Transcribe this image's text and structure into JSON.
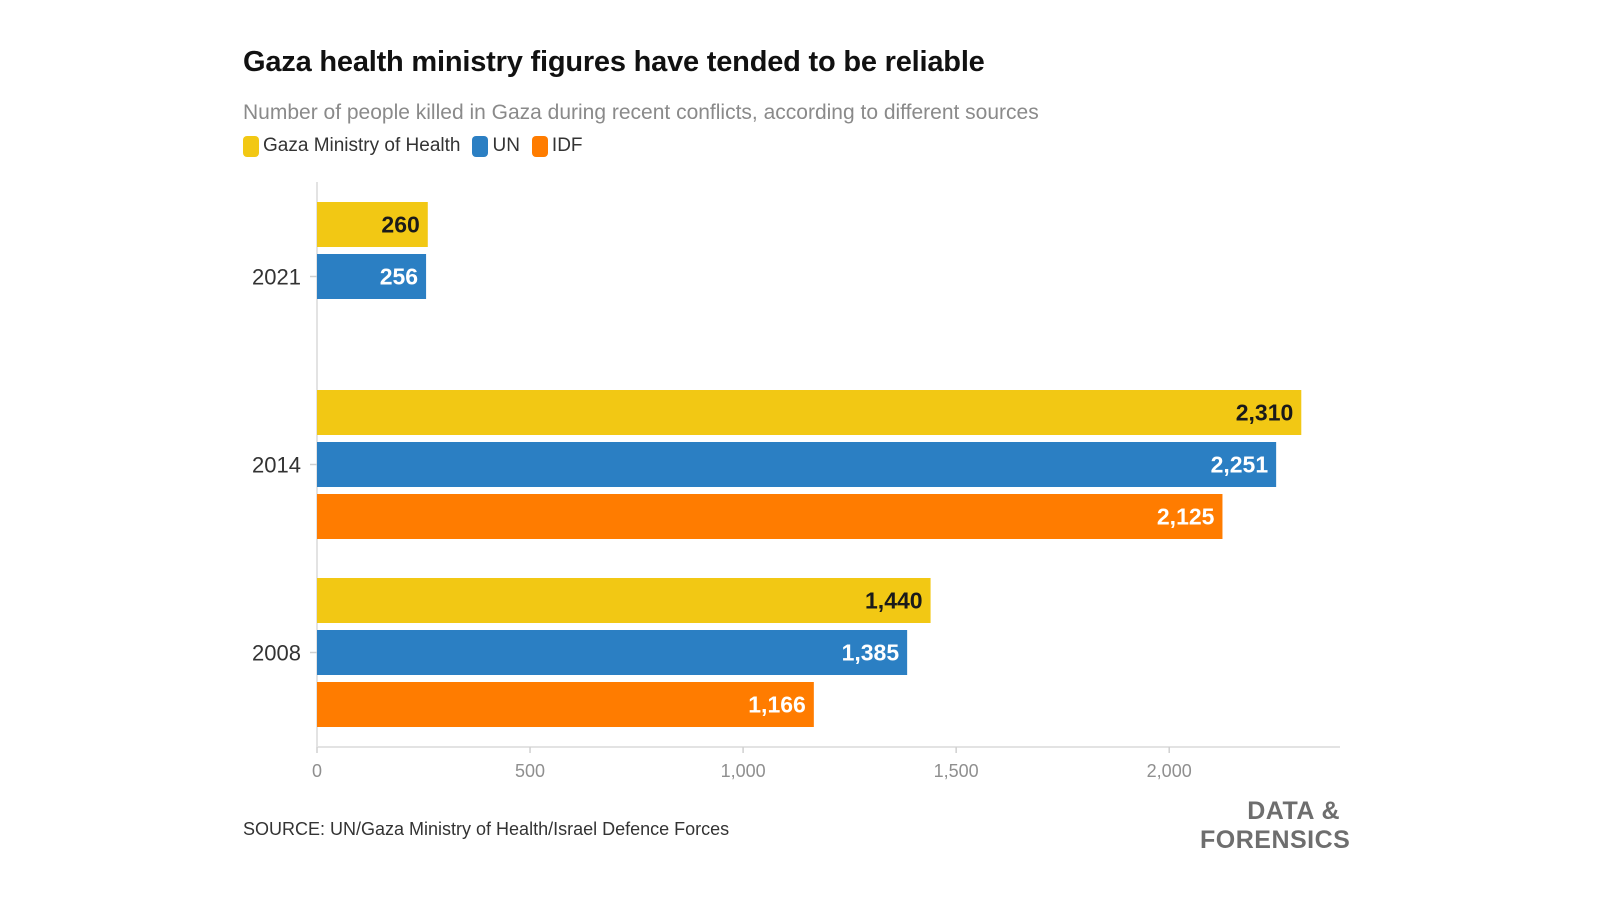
{
  "title": "Gaza health ministry figures have tended to be reliable",
  "subtitle": "Number of people killed in Gaza during recent conflicts, according to different sources",
  "legend": [
    {
      "name": "Gaza Ministry of Health",
      "color": "#f2c814"
    },
    {
      "name": "UN",
      "color": "#2b7fc3"
    },
    {
      "name": "IDF",
      "color": "#ff7c00"
    }
  ],
  "source": "SOURCE: UN/Gaza Ministry of Health/Israel Defence Forces",
  "brand": {
    "line1": "DATA &",
    "line2": "FORENSICS"
  },
  "chart_data": {
    "type": "bar",
    "orientation": "horizontal",
    "categories": [
      "2021",
      "2014",
      "2008"
    ],
    "series": [
      {
        "name": "Gaza Ministry of Health",
        "color": "#f2c814",
        "label_color": "#1a1a1a",
        "values": [
          260,
          2310,
          1440
        ],
        "labels": [
          "260",
          "2,310",
          "1,440"
        ]
      },
      {
        "name": "UN",
        "color": "#2b7fc3",
        "label_color": "#ffffff",
        "values": [
          256,
          2251,
          1385
        ],
        "labels": [
          "256",
          "2,251",
          "1,385"
        ]
      },
      {
        "name": "IDF",
        "color": "#ff7c00",
        "label_color": "#ffffff",
        "values": [
          null,
          2125,
          1166
        ],
        "labels": [
          "",
          "2,125",
          "1,166"
        ]
      }
    ],
    "xlim": [
      0,
      2400
    ],
    "xticks": [
      0,
      500,
      1000,
      1500,
      2000
    ],
    "xtick_labels": [
      "0",
      "500",
      "1,000",
      "1,500",
      "2,000"
    ],
    "title": "Gaza health ministry figures have tended to be reliable",
    "xlabel": "",
    "ylabel": "",
    "legend_position": "top-left"
  }
}
